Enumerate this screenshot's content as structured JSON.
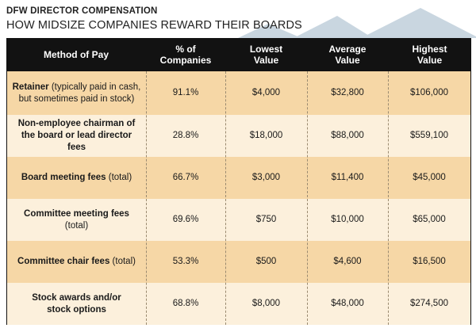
{
  "header": {
    "kicker": "DFW DIRECTOR COMPENSATION",
    "subtitle": "HOW MIDSIZE COMPANIES REWARD THEIR BOARDS"
  },
  "table": {
    "columns": [
      {
        "line1": "Method of Pay",
        "line2": ""
      },
      {
        "line1": "% of",
        "line2": "Companies"
      },
      {
        "line1": "Lowest",
        "line2": "Value"
      },
      {
        "line1": "Average",
        "line2": "Value"
      },
      {
        "line1": "Highest",
        "line2": "Value"
      }
    ],
    "rows": [
      {
        "m1": "Retainer",
        "m2": " (typically paid in cash,",
        "m3": "but sometimes paid in stock)",
        "pct": "91.1%",
        "low": "$4,000",
        "avg": "$32,800",
        "high": "$106,000"
      },
      {
        "m1": "Non-employee chairman of",
        "m2": "",
        "m3": "the board or lead director fees",
        "pct": "28.8%",
        "low": "$18,000",
        "avg": "$88,000",
        "high": "$559,100"
      },
      {
        "m1": "Board meeting fees",
        "m2": " (total)",
        "m3": "",
        "pct": "66.7%",
        "low": "$3,000",
        "avg": "$11,400",
        "high": "$45,000"
      },
      {
        "m1": "Committee meeting fees",
        "m2": " (total)",
        "m3": "",
        "pct": "69.6%",
        "low": "$750",
        "avg": "$10,000",
        "high": "$65,000"
      },
      {
        "m1": "Committee chair fees",
        "m2": " (total)",
        "m3": "",
        "pct": "53.3%",
        "low": "$500",
        "avg": "$4,600",
        "high": "$16,500"
      },
      {
        "m1": "Stock awards and/or",
        "m2": "",
        "m3": "stock options",
        "pct": "68.8%",
        "low": "$8,000",
        "avg": "$48,000",
        "high": "$274,500"
      }
    ]
  },
  "colors": {
    "header_bg": "#121212",
    "row_dark": "#f6d7a6",
    "row_light": "#fcf0dc",
    "mountain": "#c9d6e0"
  }
}
